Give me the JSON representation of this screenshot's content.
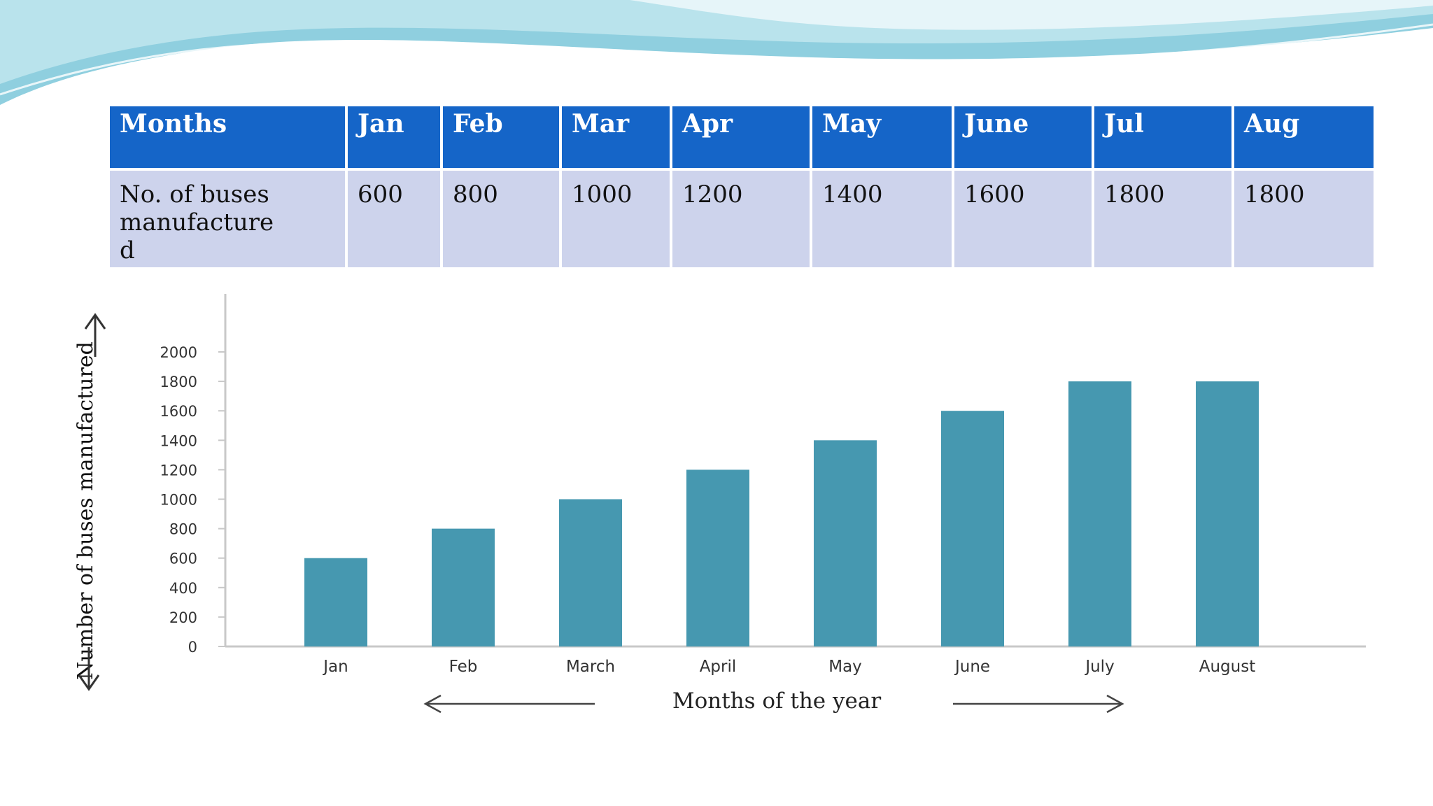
{
  "table": {
    "header_label": "Months",
    "row_label_lines": [
      "No. of buses",
      "manufacture",
      "d"
    ],
    "columns": [
      {
        "month": "Jan",
        "value": "600"
      },
      {
        "month": "Feb",
        "value": "800"
      },
      {
        "month": "Mar",
        "value": "1000"
      },
      {
        "month": "Apr",
        "value": "1200"
      },
      {
        "month": "May",
        "value": "1400"
      },
      {
        "month": "June",
        "value": "1600"
      },
      {
        "month": "Jul",
        "value": "1800"
      },
      {
        "month": "Aug",
        "value": "1800"
      }
    ]
  },
  "colors": {
    "header_bg": "#1565c8",
    "row_bg": "#cdd3ec",
    "bar": "#4698b0",
    "banner_light": "#b9e3ec",
    "banner_mid": "#7ec4d6"
  },
  "chart_data": {
    "type": "bar",
    "categories": [
      "Jan",
      "Feb",
      "March",
      "April",
      "May",
      "June",
      "July",
      "August"
    ],
    "values": [
      600,
      800,
      1000,
      1200,
      1400,
      1600,
      1800,
      1800
    ],
    "yticks": [
      0,
      200,
      400,
      600,
      800,
      1000,
      1200,
      1400,
      1600,
      1800,
      2000
    ],
    "ylim": [
      0,
      2000
    ],
    "xlabel": "Months of the year",
    "ylabel": "Number of buses manufactured",
    "grid": false,
    "legend": "none"
  }
}
